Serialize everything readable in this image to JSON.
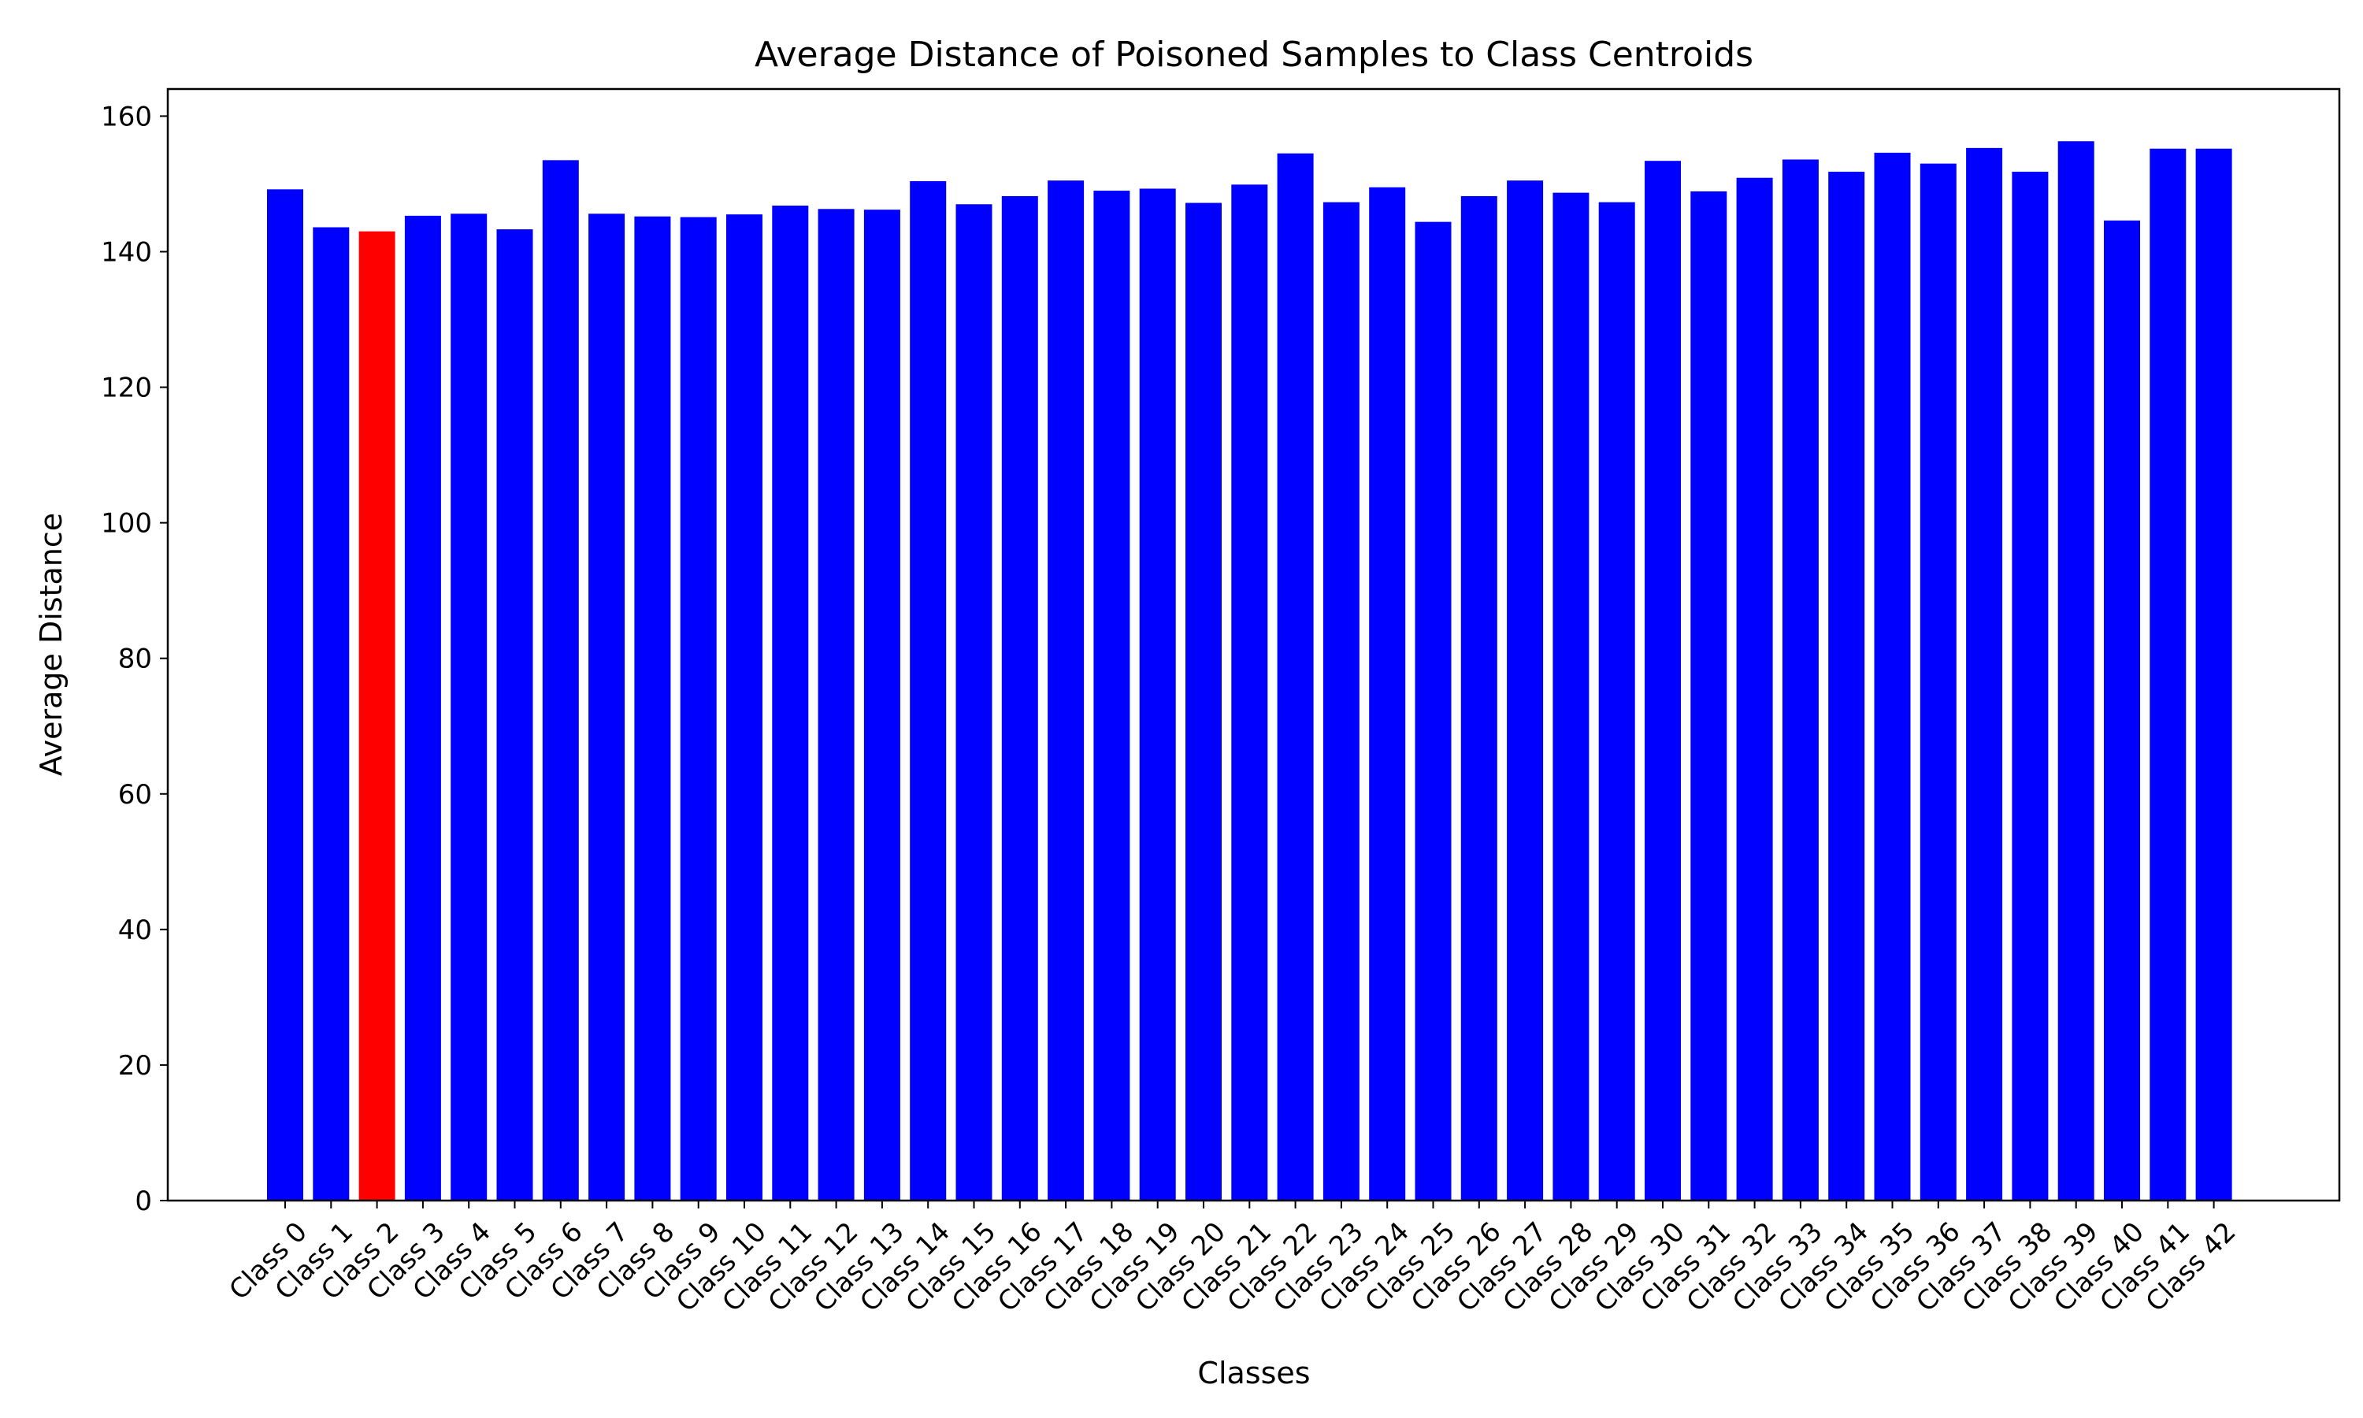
{
  "chart_data": {
    "type": "bar",
    "title": "Average Distance of Poisoned Samples to Class Centroids",
    "xlabel": "Classes",
    "ylabel": "Average Distance",
    "ylim": [
      0,
      164
    ],
    "yticks": [
      0,
      20,
      40,
      60,
      80,
      100,
      120,
      140,
      160
    ],
    "grid": false,
    "legend": "none",
    "bar_color": "#0000ff",
    "highlight_color": "#ff0000",
    "highlight_index": 2,
    "categories": [
      "Class 0",
      "Class 1",
      "Class 2",
      "Class 3",
      "Class 4",
      "Class 5",
      "Class 6",
      "Class 7",
      "Class 8",
      "Class 9",
      "Class 10",
      "Class 11",
      "Class 12",
      "Class 13",
      "Class 14",
      "Class 15",
      "Class 16",
      "Class 17",
      "Class 18",
      "Class 19",
      "Class 20",
      "Class 21",
      "Class 22",
      "Class 23",
      "Class 24",
      "Class 25",
      "Class 26",
      "Class 27",
      "Class 28",
      "Class 29",
      "Class 30",
      "Class 31",
      "Class 32",
      "Class 33",
      "Class 34",
      "Class 35",
      "Class 36",
      "Class 37",
      "Class 38",
      "Class 39",
      "Class 40",
      "Class 41",
      "Class 42"
    ],
    "values": [
      149.2,
      143.6,
      143.0,
      145.3,
      145.6,
      143.3,
      153.5,
      145.6,
      145.2,
      145.1,
      145.5,
      146.8,
      146.3,
      146.2,
      150.4,
      147.0,
      148.2,
      150.5,
      149.0,
      149.3,
      147.2,
      149.9,
      154.5,
      147.3,
      149.5,
      144.4,
      148.2,
      150.5,
      148.7,
      147.3,
      153.4,
      148.9,
      150.9,
      153.6,
      151.8,
      154.6,
      153.0,
      155.3,
      151.8,
      156.3,
      144.6,
      155.2,
      155.2
    ]
  }
}
